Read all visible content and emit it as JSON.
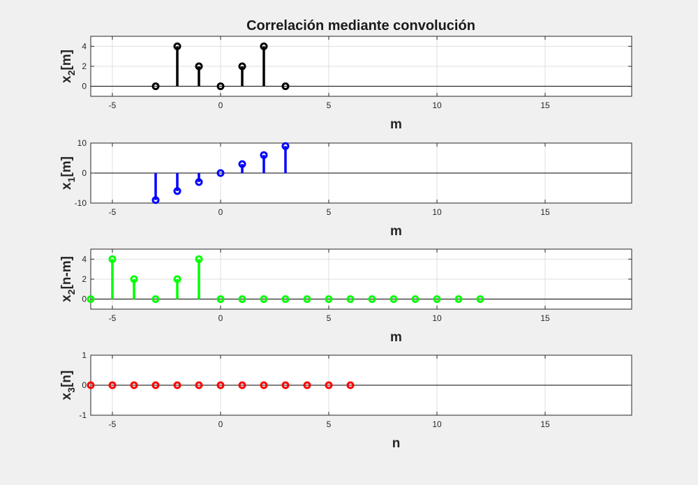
{
  "figure": {
    "title": "Correlación mediante convolución"
  },
  "chart_data": [
    {
      "type": "stem",
      "xlabel": "m",
      "ylabel_main": "x",
      "ylabel_sub": "2",
      "ylabel_rest": "[m]",
      "xlim": [
        -6,
        19
      ],
      "ylim": [
        -1,
        5
      ],
      "xticks": [
        -5,
        0,
        5,
        10,
        15
      ],
      "yticks": [
        0,
        2,
        4
      ],
      "grid": true,
      "color": "#000000",
      "x": [
        -3,
        -2,
        -1,
        0,
        1,
        2,
        3
      ],
      "y": [
        0,
        4,
        2,
        0,
        2,
        4,
        0
      ]
    },
    {
      "type": "stem",
      "xlabel": "m",
      "ylabel_main": "x",
      "ylabel_sub": "1",
      "ylabel_rest": "[m]",
      "xlim": [
        -6,
        19
      ],
      "ylim": [
        -10,
        10
      ],
      "xticks": [
        -5,
        0,
        5,
        10,
        15
      ],
      "yticks": [
        -10,
        0,
        10
      ],
      "grid": true,
      "color": "#0000ff",
      "x": [
        -3,
        -2,
        -1,
        0,
        1,
        2,
        3
      ],
      "y": [
        -9,
        -6,
        -3,
        0,
        3,
        6,
        9
      ]
    },
    {
      "type": "stem",
      "xlabel": "m",
      "ylabel_main": "x",
      "ylabel_sub": "2",
      "ylabel_rest": "[n-m]",
      "xlim": [
        -6,
        19
      ],
      "ylim": [
        -1,
        5
      ],
      "xticks": [
        -5,
        0,
        5,
        10,
        15
      ],
      "yticks": [
        0,
        2,
        4
      ],
      "grid": true,
      "color": "#00ff00",
      "x": [
        -6,
        -5,
        -4,
        -3,
        -2,
        -1,
        0,
        1,
        2,
        3,
        4,
        5,
        6,
        7,
        8,
        9,
        10,
        11,
        12
      ],
      "y": [
        0,
        4,
        2,
        0,
        2,
        4,
        0,
        0,
        0,
        0,
        0,
        0,
        0,
        0,
        0,
        0,
        0,
        0,
        0
      ]
    },
    {
      "type": "stem",
      "xlabel": "n",
      "ylabel_main": "x",
      "ylabel_sub": "3",
      "ylabel_rest": "[n]",
      "xlim": [
        -6,
        19
      ],
      "ylim": [
        -1,
        1
      ],
      "xticks": [
        -5,
        0,
        5,
        10,
        15
      ],
      "yticks": [
        -1,
        0,
        1
      ],
      "grid": true,
      "color": "#ff0000",
      "x": [
        -6,
        -5,
        -4,
        -3,
        -2,
        -1,
        0,
        1,
        2,
        3,
        4,
        5,
        6
      ],
      "y": [
        0,
        0,
        0,
        0,
        0,
        0,
        0,
        0,
        0,
        0,
        0,
        0,
        0
      ]
    }
  ]
}
